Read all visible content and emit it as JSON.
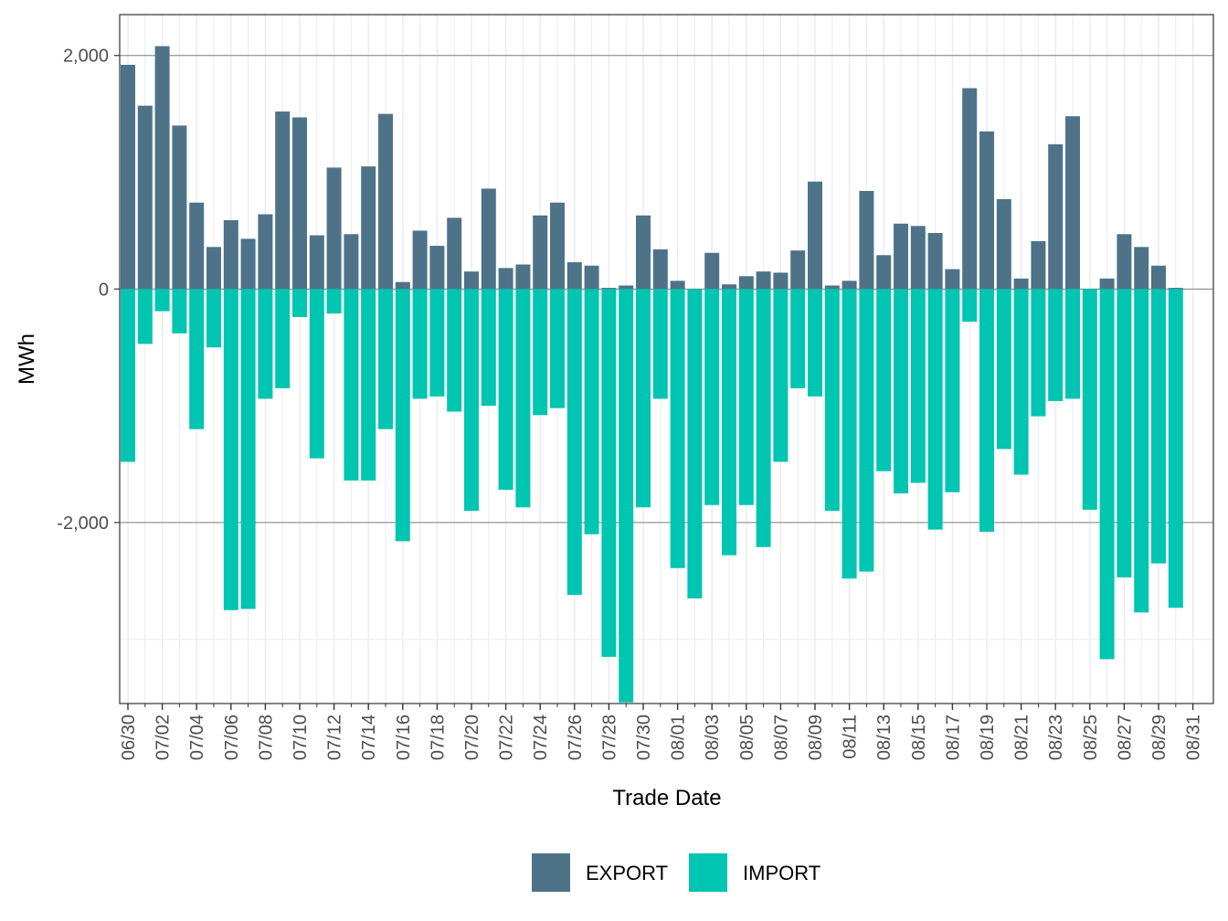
{
  "colors": {
    "export": "#4e7389",
    "import": "#00c5b0",
    "grid_major": "#7f7f7f",
    "grid_minor": "#ebebeb",
    "border": "#333333",
    "tick_text": "#4d4d4d"
  },
  "chart_data": {
    "type": "bar",
    "title": "",
    "xlabel": "Trade Date",
    "ylabel": "MWh",
    "ylim": [
      -3550,
      2350
    ],
    "yticks": [
      {
        "value": 2000,
        "label": "2,000"
      },
      {
        "value": 0,
        "label": "0"
      },
      {
        "value": -2000,
        "label": "-2,000"
      }
    ],
    "xtick_labels": [
      "06/30",
      "07/02",
      "07/04",
      "07/06",
      "07/08",
      "07/10",
      "07/12",
      "07/14",
      "07/16",
      "07/18",
      "07/20",
      "07/22",
      "07/24",
      "07/26",
      "07/28",
      "07/30",
      "08/01",
      "08/03",
      "08/05",
      "08/07",
      "08/09",
      "08/11",
      "08/13",
      "08/15",
      "08/17",
      "08/19",
      "08/21",
      "08/23",
      "08/25",
      "08/27",
      "08/29",
      "08/31"
    ],
    "categories": [
      "06/30",
      "07/01",
      "07/02",
      "07/03",
      "07/04",
      "07/05",
      "07/06",
      "07/07",
      "07/08",
      "07/09",
      "07/10",
      "07/11",
      "07/12",
      "07/13",
      "07/14",
      "07/15",
      "07/16",
      "07/17",
      "07/18",
      "07/19",
      "07/20",
      "07/21",
      "07/22",
      "07/23",
      "07/24",
      "07/25",
      "07/26",
      "07/27",
      "07/28",
      "07/29",
      "07/30",
      "07/31",
      "08/01",
      "08/02",
      "08/03",
      "08/04",
      "08/05",
      "08/06",
      "08/07",
      "08/08",
      "08/09",
      "08/10",
      "08/11",
      "08/12",
      "08/13",
      "08/14",
      "08/15",
      "08/16",
      "08/17",
      "08/18",
      "08/19",
      "08/20",
      "08/21",
      "08/22",
      "08/23",
      "08/24",
      "08/25",
      "08/26",
      "08/27",
      "08/28",
      "08/29",
      "08/30",
      "08/31"
    ],
    "series": [
      {
        "name": "EXPORT",
        "values": [
          1920,
          1570,
          2080,
          1400,
          740,
          360,
          590,
          430,
          640,
          1520,
          1470,
          460,
          1040,
          470,
          1050,
          1500,
          60,
          500,
          370,
          610,
          150,
          860,
          180,
          210,
          630,
          740,
          230,
          200,
          10,
          30,
          630,
          340,
          70,
          0,
          310,
          40,
          110,
          150,
          140,
          330,
          920,
          30,
          70,
          840,
          290,
          560,
          540,
          480,
          170,
          1720,
          1350,
          770,
          90,
          410,
          1240,
          1480,
          0,
          90,
          470,
          360,
          200,
          10,
          0
        ]
      },
      {
        "name": "IMPORT",
        "values": [
          -1480,
          -470,
          -190,
          -380,
          -1200,
          -500,
          -2750,
          -2740,
          -940,
          -850,
          -240,
          -1450,
          -210,
          -1640,
          -1640,
          -1200,
          -2160,
          -940,
          -920,
          -1050,
          -1900,
          -1000,
          -1720,
          -1870,
          -1080,
          -1020,
          -2620,
          -2100,
          -3150,
          -3540,
          -1870,
          -940,
          -2390,
          -2650,
          -1850,
          -2280,
          -1850,
          -2210,
          -1480,
          -850,
          -920,
          -1900,
          -2480,
          -2420,
          -1560,
          -1750,
          -1660,
          -2060,
          -1740,
          -280,
          -2080,
          -1370,
          -1590,
          -1090,
          -960,
          -940,
          -1890,
          -3170,
          -2470,
          -2770,
          -2350,
          -2730,
          0
        ]
      }
    ],
    "legend": {
      "position": "bottom",
      "entries": [
        "EXPORT",
        "IMPORT"
      ]
    }
  }
}
